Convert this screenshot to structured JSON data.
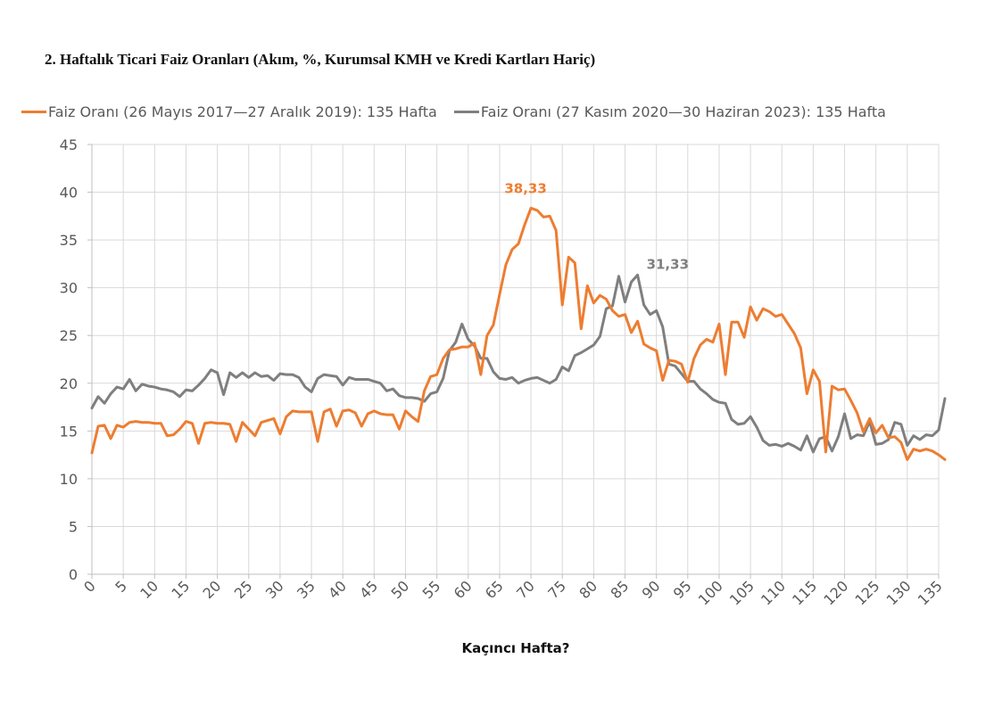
{
  "chart_data": {
    "type": "line",
    "title": "2. Haftalık Ticari Faiz Oranları (Akım, %, Kurumsal KMH ve Kredi Kartları Hariç)",
    "xlabel": "Kaçıncı Hafta?",
    "ylabel": "",
    "xlim": [
      0,
      135
    ],
    "ylim": [
      0,
      45
    ],
    "xticks": [
      0,
      5,
      10,
      15,
      20,
      25,
      30,
      35,
      40,
      45,
      50,
      55,
      60,
      65,
      70,
      75,
      80,
      85,
      90,
      95,
      100,
      105,
      110,
      115,
      120,
      125,
      130,
      135
    ],
    "yticks": [
      0,
      5,
      10,
      15,
      20,
      25,
      30,
      35,
      40,
      45
    ],
    "grid": true,
    "legend_position": "top",
    "series": [
      {
        "name": "Faiz Oranı (26 Mayıs 2017—27 Aralık 2019): 135 Hafta",
        "color": "#ED7D31",
        "values": [
          12.7,
          15.5,
          15.6,
          14.2,
          15.6,
          15.4,
          15.9,
          16.0,
          15.9,
          15.9,
          15.8,
          15.8,
          14.5,
          14.6,
          15.2,
          16.0,
          15.8,
          13.7,
          15.8,
          15.9,
          15.8,
          15.8,
          15.7,
          13.9,
          15.9,
          15.2,
          14.5,
          15.9,
          16.1,
          16.3,
          14.7,
          16.5,
          17.1,
          17.0,
          17.0,
          17.0,
          13.9,
          17.0,
          17.3,
          15.5,
          17.1,
          17.2,
          16.9,
          15.5,
          16.8,
          17.1,
          16.8,
          16.7,
          16.7,
          15.2,
          17.1,
          16.5,
          16.0,
          19.2,
          20.7,
          20.9,
          22.6,
          23.5,
          23.6,
          23.8,
          23.8,
          24.2,
          20.9,
          25.0,
          26.1,
          29.3,
          32.4,
          34.0,
          34.6,
          36.6,
          38.33,
          38.1,
          37.4,
          37.5,
          36.0,
          28.2,
          33.2,
          32.6,
          25.7,
          30.2,
          28.4,
          29.2,
          28.8,
          27.6,
          27.0,
          27.2,
          25.3,
          26.5,
          24.1,
          23.7,
          23.4,
          20.3,
          22.4,
          22.3,
          22.0,
          20.1,
          22.6,
          24.0,
          24.6,
          24.3,
          26.2,
          20.9,
          26.4,
          26.4,
          24.8,
          28.0,
          26.6,
          27.8,
          27.5,
          27.0,
          27.2,
          26.2,
          25.2,
          23.7,
          18.9,
          21.4,
          20.2,
          12.8,
          19.7,
          19.3,
          19.4,
          18.2,
          16.9,
          14.9,
          16.3,
          14.8,
          15.6,
          14.3,
          14.4,
          13.8,
          12.0,
          13.1,
          12.9,
          13.1,
          12.9,
          12.5,
          12.0
        ]
      },
      {
        "name": "Faiz Oranı (27 Kasım 2020—30 Haziran 2023): 135 Hafta",
        "color": "#7F7F7F",
        "values": [
          17.4,
          18.6,
          17.9,
          18.9,
          19.6,
          19.4,
          20.4,
          19.2,
          19.9,
          19.7,
          19.6,
          19.4,
          19.3,
          19.1,
          18.6,
          19.3,
          19.2,
          19.8,
          20.5,
          21.4,
          21.1,
          18.8,
          21.1,
          20.6,
          21.1,
          20.6,
          21.1,
          20.7,
          20.8,
          20.3,
          21.0,
          20.9,
          20.9,
          20.6,
          19.6,
          19.1,
          20.5,
          20.9,
          20.8,
          20.7,
          19.8,
          20.6,
          20.4,
          20.4,
          20.4,
          20.2,
          20.0,
          19.2,
          19.4,
          18.7,
          18.5,
          18.5,
          18.4,
          18.1,
          18.9,
          19.1,
          20.5,
          23.4,
          24.3,
          26.2,
          24.6,
          23.9,
          22.6,
          22.6,
          21.2,
          20.5,
          20.4,
          20.6,
          20.0,
          20.3,
          20.5,
          20.6,
          20.3,
          20.0,
          20.4,
          21.7,
          21.3,
          22.9,
          23.2,
          23.6,
          24.0,
          24.9,
          27.8,
          28.1,
          31.2,
          28.5,
          30.6,
          31.33,
          28.2,
          27.2,
          27.6,
          25.9,
          22.0,
          21.8,
          21.0,
          20.2,
          20.2,
          19.4,
          18.9,
          18.3,
          18.0,
          17.9,
          16.2,
          15.7,
          15.8,
          16.5,
          15.4,
          14.0,
          13.5,
          13.6,
          13.4,
          13.7,
          13.4,
          13.0,
          14.5,
          12.8,
          14.2,
          14.4,
          12.9,
          14.4,
          16.8,
          14.2,
          14.6,
          14.5,
          16.0,
          13.6,
          13.7,
          14.1,
          15.9,
          15.7,
          13.5,
          14.5,
          14.1,
          14.6,
          14.5,
          15.1,
          18.4
        ]
      }
    ],
    "annotations": [
      {
        "text": "38,33",
        "x": 70,
        "y": 38.33,
        "series": 0,
        "color": "#ED7D31"
      },
      {
        "text": "31,33",
        "x": 87,
        "y": 31.33,
        "series": 1,
        "color": "#7F7F7F"
      }
    ]
  }
}
